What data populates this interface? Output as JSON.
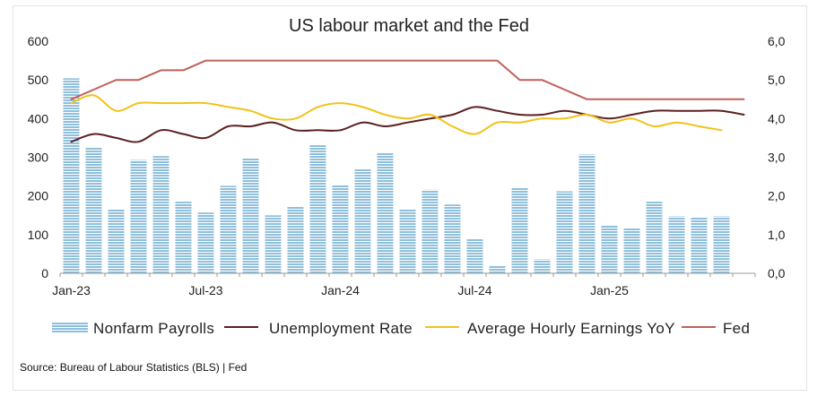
{
  "chart_data": {
    "type": "bar",
    "title": "US labour market and the Fed",
    "source": "Source: Bureau of Labour Statistics (BLS) | Fed",
    "x": [
      "2023-01",
      "2023-02",
      "2023-03",
      "2023-04",
      "2023-05",
      "2023-06",
      "2023-07",
      "2023-08",
      "2023-09",
      "2023-10",
      "2023-11",
      "2023-12",
      "2024-01",
      "2024-02",
      "2024-03",
      "2024-04",
      "2024-05",
      "2024-06",
      "2024-07",
      "2024-08",
      "2024-09",
      "2024-10",
      "2024-11",
      "2024-12",
      "2025-01",
      "2025-02",
      "2025-03",
      "2025-04",
      "2025-05",
      "2025-06",
      "2025-07"
    ],
    "x_tick_labels": [
      {
        "x": "2023-01",
        "label": "Jan-23"
      },
      {
        "x": "2023-07",
        "label": "Jul-23"
      },
      {
        "x": "2024-01",
        "label": "Jan-24"
      },
      {
        "x": "2024-07",
        "label": "Jul-24"
      },
      {
        "x": "2025-01",
        "label": "Jan-25"
      }
    ],
    "y_left": {
      "range": [
        0,
        600
      ],
      "ticks": [
        "0",
        "100",
        "200",
        "300",
        "400",
        "500",
        "600"
      ]
    },
    "y_right": {
      "range": [
        0,
        6
      ],
      "ticks": [
        "0,0",
        "1,0",
        "2,0",
        "3,0",
        "4,0",
        "5,0",
        "6,0"
      ]
    },
    "grid": false,
    "legend_position": "bottom",
    "series": [
      {
        "name": "Nonfarm Payrolls",
        "type": "bar",
        "axis": "left",
        "color": "#8fbfdc",
        "values": [
          504,
          325,
          165,
          293,
          303,
          185,
          157,
          226,
          297,
          150,
          173,
          332,
          229,
          270,
          312,
          165,
          216,
          178,
          89,
          20,
          221,
          36,
          212,
          307,
          125,
          116,
          185,
          147,
          144,
          147,
          null
        ]
      },
      {
        "name": "Unemployment Rate",
        "type": "line",
        "axis": "right",
        "color": "#5c1f1f",
        "values": [
          3.4,
          3.6,
          3.5,
          3.4,
          3.7,
          3.6,
          3.5,
          3.8,
          3.8,
          3.9,
          3.7,
          3.7,
          3.7,
          3.9,
          3.8,
          3.9,
          4.0,
          4.1,
          4.3,
          4.2,
          4.1,
          4.1,
          4.2,
          4.1,
          4.0,
          4.1,
          4.2,
          4.2,
          4.2,
          4.2,
          4.1
        ]
      },
      {
        "name": "Average Hourly Earnings YoY",
        "type": "line",
        "axis": "right",
        "color": "#f2c21a",
        "values": [
          4.4,
          4.6,
          4.2,
          4.4,
          4.4,
          4.4,
          4.4,
          4.3,
          4.2,
          4.0,
          4.0,
          4.3,
          4.4,
          4.3,
          4.1,
          4.0,
          4.1,
          3.8,
          3.6,
          3.9,
          3.9,
          4.0,
          4.0,
          4.1,
          3.9,
          4.0,
          3.8,
          3.9,
          3.8,
          3.7,
          null
        ]
      },
      {
        "name": "Fed",
        "type": "line",
        "axis": "right",
        "color": "#c0605a",
        "values": [
          4.5,
          4.75,
          5.0,
          5.0,
          5.25,
          5.25,
          5.5,
          5.5,
          5.5,
          5.5,
          5.5,
          5.5,
          5.5,
          5.5,
          5.5,
          5.5,
          5.5,
          5.5,
          5.5,
          5.5,
          5.0,
          5.0,
          4.75,
          4.5,
          4.5,
          4.5,
          4.5,
          4.5,
          4.5,
          4.5,
          4.5
        ]
      }
    ]
  }
}
